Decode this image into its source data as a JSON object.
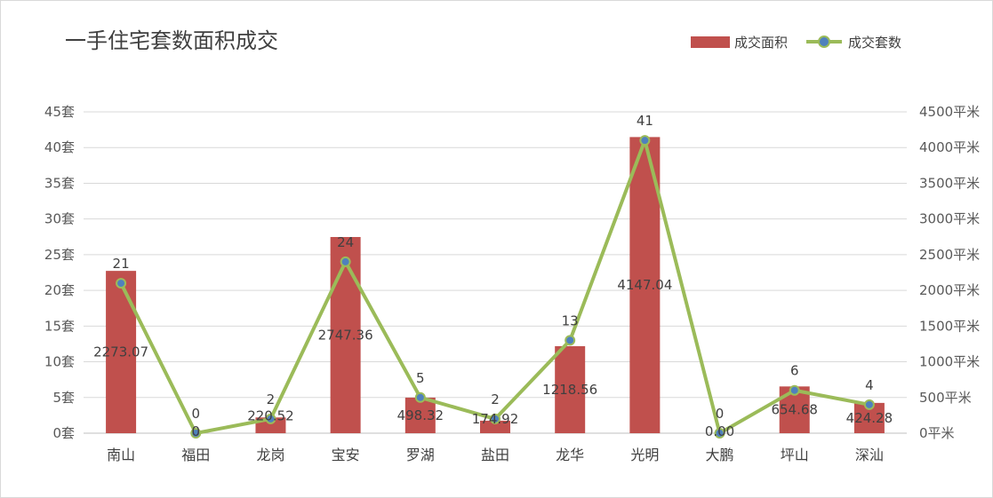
{
  "chart_data": {
    "type": "bar+line",
    "title": "一手住宅套数面积成交",
    "categories": [
      "南山",
      "福田",
      "龙岗",
      "宝安",
      "罗湖",
      "盐田",
      "龙华",
      "光明",
      "大鹏",
      "坪山",
      "深汕"
    ],
    "series": [
      {
        "name": "成交面积",
        "type": "bar",
        "axis": "right",
        "color": "#c0504d",
        "values": [
          2273.07,
          0,
          220.52,
          2747.36,
          498.32,
          174.92,
          1218.56,
          4147.04,
          0.0,
          654.68,
          424.28
        ],
        "labels": [
          "2273.07",
          "0",
          "220.52",
          "2747.36",
          "498.32",
          "174.92",
          "1218.56",
          "4147.04",
          "0.00",
          "654.68",
          "424.28"
        ]
      },
      {
        "name": "成交套数",
        "type": "line",
        "axis": "left",
        "color": "#9bbb59",
        "marker_color": "#4f81bd",
        "values": [
          21,
          0,
          2,
          24,
          5,
          2,
          13,
          41,
          0,
          6,
          4
        ],
        "labels": [
          "21",
          "0",
          "2",
          "24",
          "5",
          "2",
          "13",
          "41",
          "0",
          "6",
          "4"
        ]
      }
    ],
    "y_left": {
      "range": [
        0,
        45
      ],
      "ticks": [
        "0套",
        "5套",
        "10套",
        "15套",
        "20套",
        "25套",
        "30套",
        "35套",
        "40套",
        "45套"
      ]
    },
    "y_right": {
      "range": [
        0,
        4500
      ],
      "ticks": [
        "0平米",
        "500平米",
        "1000平米",
        "1500平米",
        "2000平米",
        "2500平米",
        "3000平米",
        "3500平米",
        "4000平米",
        "4500平米"
      ]
    },
    "grid": true,
    "legend_position": "top-right"
  }
}
